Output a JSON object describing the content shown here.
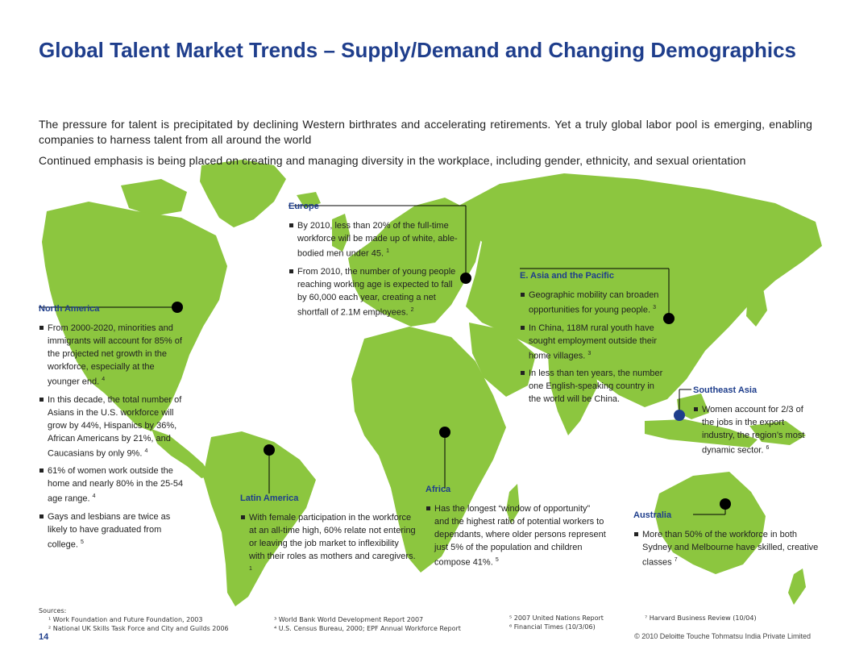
{
  "title": "Global Talent Market Trends – Supply/Demand and Changing Demographics",
  "intro": [
    "The pressure for talent is precipitated by declining Western birthrates and accelerating retirements. Yet a truly global labor pool is emerging, enabling companies to harness talent from all around the world",
    "Continued emphasis is being placed on creating and managing diversity in the workplace, including gender, ethnicity, and sexual orientation"
  ],
  "colors": {
    "land": "#8cc63f",
    "title": "#1f3e8c",
    "marker": "#000000",
    "marker_alt": "#1f3e8c"
  },
  "regions": {
    "north_america": {
      "title": "North America",
      "bullets": [
        {
          "text": "From 2000-2020, minorities and immigrants will account for 85% of the projected net growth in the workforce, especially at the younger end.",
          "sup": "4"
        },
        {
          "text": "In this decade, the total number of Asians in the U.S. workforce will grow by 44%, Hispanics by 36%, African Americans by 21%, and Caucasians by only 9%.",
          "sup": "4"
        },
        {
          "text": "61% of women work outside the home and nearly 80% in the 25-54 age range.",
          "sup": "4"
        },
        {
          "text": "Gays and lesbians are twice as likely to have graduated from college.",
          "sup": "5"
        }
      ]
    },
    "europe": {
      "title": "Europe",
      "bullets": [
        {
          "text": "By 2010, less than 20% of the full-time workforce will be made up of white, able-bodied men under 45.",
          "sup": "1"
        },
        {
          "text": "From 2010, the number of young people reaching working age is expected to fall by 60,000 each year, creating a net shortfall of 2.1M employees.",
          "sup": "2"
        }
      ]
    },
    "east_asia": {
      "title": "E. Asia and the Pacific",
      "bullets": [
        {
          "text": "Geographic mobility can broaden opportunities for young people.",
          "sup": "3"
        },
        {
          "text": "In China, 118M rural youth have sought employment outside their home villages.",
          "sup": "3"
        },
        {
          "text": "In less than ten years, the number one English-speaking country in the world will be China.",
          "sup": ""
        }
      ]
    },
    "southeast_asia": {
      "title": "Southeast Asia",
      "bullets": [
        {
          "text": "Women account for 2/3 of the jobs in the export industry, the region’s most dynamic sector.",
          "sup": "6"
        }
      ]
    },
    "latin_america": {
      "title": "Latin America",
      "bullets": [
        {
          "text": "With female participation in the workforce at an all-time high, 60% relate not entering or leaving the job market to inflexibility with their roles as mothers and caregivers.",
          "sup": "1"
        }
      ]
    },
    "africa": {
      "title": "Africa",
      "bullets": [
        {
          "text": "Has the longest “window of opportunity” and the highest ratio of potential workers to dependants, where older persons represent just 5% of the population and children compose 41%.",
          "sup": "5"
        }
      ]
    },
    "australia": {
      "title": "Australia",
      "bullets": [
        {
          "text": "More than 50% of the workforce in both Sydney and Melbourne have skilled, creative classes",
          "sup": "7"
        }
      ]
    }
  },
  "sources": {
    "label": "Sources:",
    "items": [
      "¹ Work Foundation and Future Foundation, 2003",
      "² National UK Skills Task Force and City and Guilds 2006",
      "³ World Bank World Development Report 2007",
      "⁴ U.S. Census Bureau, 2000; EPF Annual Workforce Report",
      "⁵ 2007 United Nations Report",
      "⁶ Financial Times (10/3/06)",
      "⁷ Harvard Business Review (10/04)"
    ]
  },
  "footer": {
    "page_number": "14",
    "copyright": "© 2010 Deloitte Touche Tohmatsu India Private Limited"
  }
}
